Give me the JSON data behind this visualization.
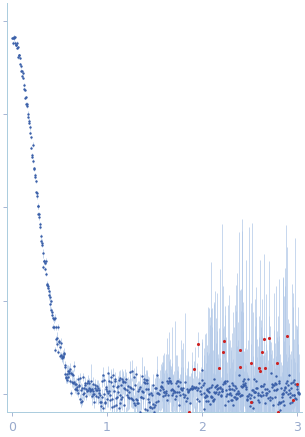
{
  "title": "",
  "xlabel": "",
  "ylabel": "",
  "xlim": [
    -0.05,
    3.05
  ],
  "ylim": [
    -0.05,
    1.05
  ],
  "dot_color_blue": "#3a5fa8",
  "dot_color_red": "#cc2222",
  "errorbar_color": "#b0c8e8",
  "spine_color": "#aaccdd",
  "tick_color": "#99aacc",
  "label_color": "#99aacc",
  "background_color": "#ffffff",
  "dot_size": 3.0,
  "red_dot_size": 5.0,
  "n_points_dense": 400,
  "n_points_sparse": 200,
  "seed": 17
}
